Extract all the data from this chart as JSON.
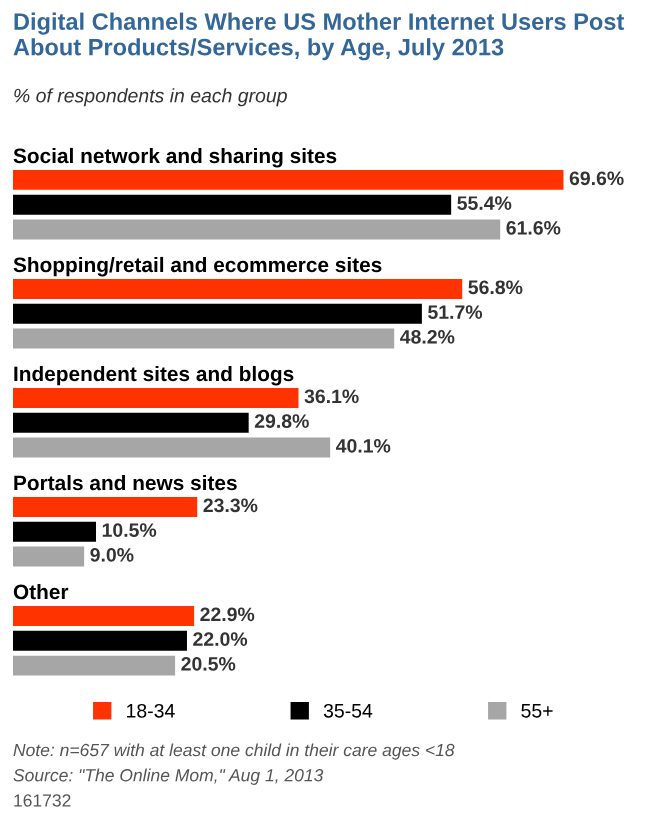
{
  "chart_data": {
    "type": "bar",
    "orientation": "horizontal",
    "title": "Digital Channels Where US Mother Internet Users Post About Products/Services, by Age, July 2013",
    "subtitle": "% of respondents in each group",
    "categories": [
      "Social network and sharing sites",
      "Shopping/retail and ecommerce sites",
      "Independent sites and blogs",
      "Portals and news sites",
      "Other"
    ],
    "series": [
      {
        "name": "18-34",
        "color": "#ff3300",
        "values": [
          69.6,
          56.8,
          36.1,
          23.3,
          22.9
        ],
        "value_labels": [
          "69.6%",
          "56.8%",
          "36.1%",
          "23.3%",
          "22.9%"
        ]
      },
      {
        "name": "35-54",
        "color": "#000000",
        "values": [
          55.4,
          51.7,
          29.8,
          10.5,
          22.0
        ],
        "value_labels": [
          "55.4%",
          "51.7%",
          "29.8%",
          "10.5%",
          "22.0%"
        ]
      },
      {
        "name": "55+",
        "color": "#a6a6a6",
        "values": [
          61.6,
          48.2,
          40.1,
          9.0,
          20.5
        ],
        "value_labels": [
          "61.6%",
          "48.2%",
          "40.1%",
          "9.0%",
          "20.5%"
        ]
      }
    ],
    "legend": "bottom",
    "annotations": [
      "Note: n=657 with at least one child in their care ages <18",
      "Source: \"The Online Mom,\" Aug 1, 2013",
      "161732"
    ]
  }
}
